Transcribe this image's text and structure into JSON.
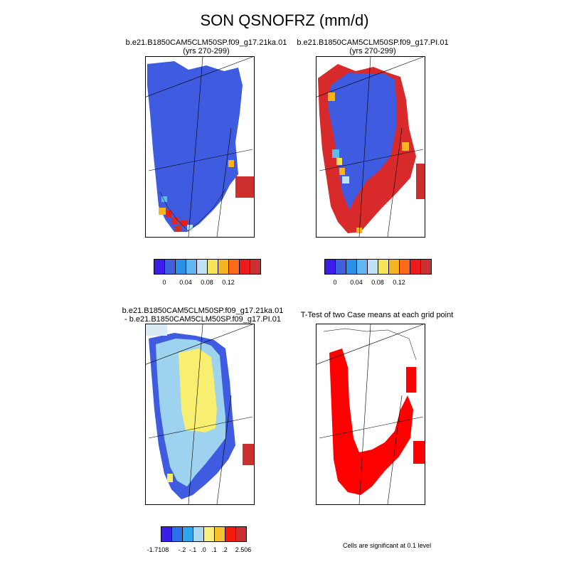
{
  "figure": {
    "title": "SON QSNOFRZ (mm/d)",
    "footnote": "Cells are significant at 0.1 level"
  },
  "panels": [
    {
      "title_line1": "b.e21.B1850CAM5CLM50SP.f09_g17.21ka.01",
      "title_line2": "(yrs 270-299)"
    },
    {
      "title_line1": "b.e21.B1850CAM5CLM50SP.f09_g17.PI.01",
      "title_line2": "(yrs 270-299)"
    },
    {
      "title_line1": "b.e21.B1850CAM5CLM50SP.f09_g17.21ka.01",
      "title_line2": "- b.e21.B1850CAM5CLM50SP.f09_g17.PI.01"
    },
    {
      "title_line1": "T-Test of two Case means at each grid point",
      "title_line2": ""
    }
  ],
  "colorbars": {
    "top": {
      "colors": [
        "#3a1ee8",
        "#3f61e0",
        "#2a8fe8",
        "#5fb8f0",
        "#bfe3f5",
        "#f5e35a",
        "#f8b520",
        "#fa6a1a",
        "#ef1a1a",
        "#cc2f30"
      ],
      "labels": [
        "0",
        "0.04",
        "0.08",
        "0.12"
      ],
      "label_boundaries": [
        1,
        3,
        5,
        7
      ]
    },
    "bottom": {
      "colors": [
        "#3a1ee8",
        "#2a70e8",
        "#2aa5ee",
        "#a8d8f0",
        "#f8f07a",
        "#f8c030",
        "#f51a0a",
        "#cc2f30"
      ],
      "labels": [
        "-1.7108",
        "-.2",
        "-.1",
        ".0",
        ".1",
        ".2",
        "2.506"
      ],
      "label_boundaries": [
        1,
        2,
        3,
        4,
        5,
        6,
        7
      ]
    }
  },
  "legend_colors": {
    "dark_blue": "#3f5ce0",
    "red": "#d8292b",
    "light_blue": "#9dd3ef",
    "yellow": "#f8ee70",
    "significant_red": "#ff0000"
  }
}
